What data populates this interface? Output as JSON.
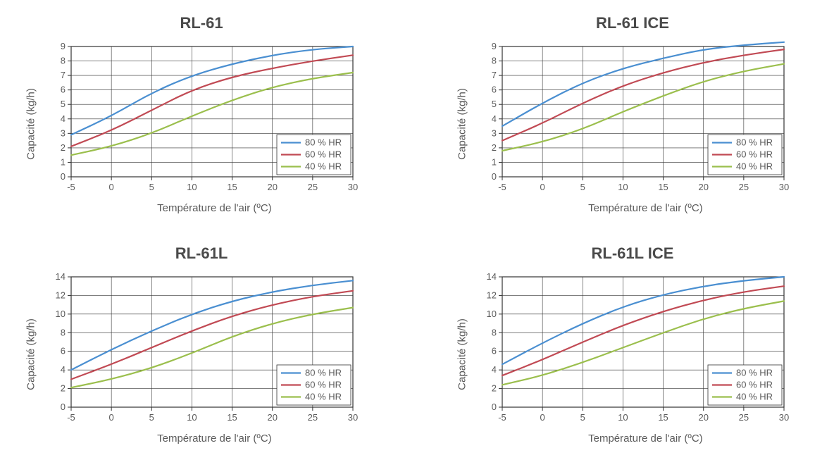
{
  "global": {
    "xlabel": "Température de l'air (ºC)",
    "ylabel": "Capacité (kg/h)",
    "x_values": [
      -5,
      0,
      5,
      10,
      15,
      20,
      25,
      30
    ],
    "xlim": [
      -5,
      30
    ],
    "xtick_step": 5,
    "label_fontsize": 15,
    "tick_fontsize": 13,
    "title_fontsize": 22,
    "title_color": "#4a4a4a",
    "axis_color": "#333333",
    "grid_color": "#333333",
    "grid_width": 0.6,
    "line_width": 2.2,
    "background_color": "#ffffff",
    "tick_color": "#5a5a5a",
    "series_meta": [
      {
        "key": "hr80",
        "label": "80 % HR",
        "color": "#4a8fd1"
      },
      {
        "key": "hr60",
        "label": "60 % HR",
        "color": "#c14a54"
      },
      {
        "key": "hr40",
        "label": "40 % HR",
        "color": "#9bbf4d"
      }
    ],
    "legend": {
      "position": "bottom-right",
      "fontsize": 13,
      "box_stroke": "#333333",
      "box_fill": "#ffffff",
      "swatch_width": 28
    }
  },
  "charts": [
    {
      "id": "rl61",
      "title": "RL-61",
      "ylim": [
        0,
        9
      ],
      "ytick_step": 1,
      "series": {
        "hr80": [
          2.9,
          4.2,
          5.8,
          7.0,
          7.8,
          8.4,
          8.8,
          9.0
        ],
        "hr60": [
          2.1,
          3.2,
          4.6,
          6.0,
          6.9,
          7.5,
          8.0,
          8.4
        ],
        "hr40": [
          1.5,
          2.1,
          3.0,
          4.2,
          5.3,
          6.2,
          6.8,
          7.2
        ]
      }
    },
    {
      "id": "rl61ice",
      "title": "RL-61 ICE",
      "ylim": [
        0,
        9
      ],
      "ytick_step": 1,
      "series": {
        "hr80": [
          3.5,
          5.1,
          6.5,
          7.5,
          8.2,
          8.8,
          9.1,
          9.3
        ],
        "hr60": [
          2.5,
          3.7,
          5.1,
          6.3,
          7.2,
          7.9,
          8.4,
          8.8
        ],
        "hr40": [
          1.8,
          2.4,
          3.3,
          4.5,
          5.6,
          6.6,
          7.3,
          7.8
        ]
      }
    },
    {
      "id": "rl61l",
      "title": "RL-61L",
      "ylim": [
        0,
        14
      ],
      "ytick_step": 2,
      "series": {
        "hr80": [
          4.0,
          6.2,
          8.2,
          10.0,
          11.4,
          12.4,
          13.1,
          13.6
        ],
        "hr60": [
          3.0,
          4.6,
          6.4,
          8.2,
          9.8,
          11.0,
          11.9,
          12.5
        ],
        "hr40": [
          2.1,
          3.0,
          4.2,
          5.8,
          7.6,
          9.0,
          10.0,
          10.7
        ]
      }
    },
    {
      "id": "rl61lice",
      "title": "RL-61L ICE",
      "ylim": [
        0,
        14
      ],
      "ytick_step": 2,
      "series": {
        "hr80": [
          4.6,
          6.9,
          9.0,
          10.8,
          12.1,
          13.0,
          13.6,
          14.0
        ],
        "hr60": [
          3.4,
          5.1,
          7.0,
          8.8,
          10.3,
          11.5,
          12.4,
          13.0
        ],
        "hr40": [
          2.4,
          3.4,
          4.8,
          6.4,
          8.0,
          9.5,
          10.6,
          11.4
        ]
      }
    }
  ]
}
